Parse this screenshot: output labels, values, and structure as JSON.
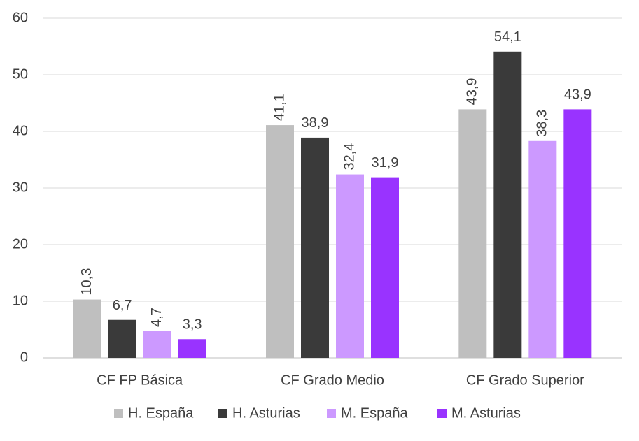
{
  "chart_data": {
    "type": "bar",
    "categories": [
      "CF FP Básica",
      "CF Grado Medio",
      "CF Grado Superior"
    ],
    "series": [
      {
        "name": "H. España",
        "color": "#bfbfbf",
        "values": [
          10.3,
          41.1,
          43.9
        ],
        "value_labels": [
          "10,3",
          "41,1",
          "43,9"
        ]
      },
      {
        "name": "H. Asturias",
        "color": "#3a3a3a",
        "values": [
          6.7,
          38.9,
          54.1
        ],
        "value_labels": [
          "6,7",
          "38,9",
          "54,1"
        ]
      },
      {
        "name": "M. España",
        "color": "#cc99ff",
        "values": [
          4.7,
          32.4,
          38.3
        ],
        "value_labels": [
          "4,7",
          "32,4",
          "38,3"
        ]
      },
      {
        "name": "M. Asturias",
        "color": "#9933ff",
        "values": [
          3.3,
          31.9,
          43.9
        ],
        "value_labels": [
          "3,3",
          "31,9",
          "43,9"
        ]
      }
    ],
    "ylim": [
      0,
      60
    ],
    "yticks": [
      0,
      10,
      20,
      30,
      40,
      50,
      60
    ],
    "grid": true,
    "legend": "bottom"
  }
}
